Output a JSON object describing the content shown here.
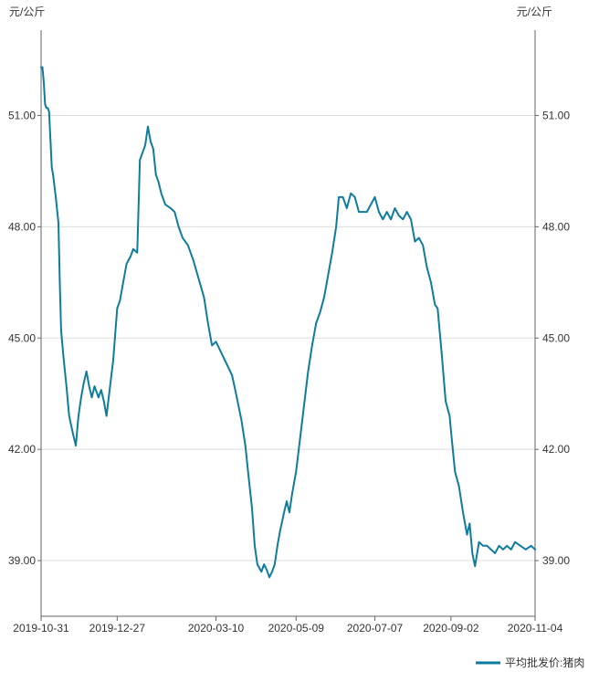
{
  "chart_data": {
    "type": "line",
    "title": "",
    "y_unit_left": "元/公斤",
    "y_unit_right": "元/公斤",
    "ylim": [
      37.5,
      53.3
    ],
    "y_ticks": [
      39.0,
      42.0,
      45.0,
      48.0,
      51.0
    ],
    "y_tick_labels": [
      "39.00",
      "42.00",
      "45.00",
      "48.00",
      "51.00"
    ],
    "x_ticks": [
      "2019-10-31",
      "2019-12-27",
      "2020-03-10",
      "2020-05-09",
      "2020-07-07",
      "2020-09-02",
      "2020-11-04"
    ],
    "grid": true,
    "legend_position": "bottom-right",
    "colors": {
      "line": "#0e7c9e",
      "grid": "#dddddd",
      "axis": "#666666"
    },
    "series": [
      {
        "name": "平均批发价:猪肉",
        "points": [
          [
            "2019-10-31",
            52.3
          ],
          [
            "2019-11-01",
            52.3
          ],
          [
            "2019-11-02",
            51.9
          ],
          [
            "2019-11-03",
            51.3
          ],
          [
            "2019-11-04",
            51.2
          ],
          [
            "2019-11-05",
            51.2
          ],
          [
            "2019-11-06",
            51.1
          ],
          [
            "2019-11-08",
            49.6
          ],
          [
            "2019-11-09",
            49.4
          ],
          [
            "2019-11-11",
            48.8
          ],
          [
            "2019-11-13",
            48.1
          ],
          [
            "2019-11-14",
            46.5
          ],
          [
            "2019-11-15",
            45.2
          ],
          [
            "2019-11-17",
            44.4
          ],
          [
            "2019-11-19",
            43.7
          ],
          [
            "2019-11-21",
            42.9
          ],
          [
            "2019-11-24",
            42.4
          ],
          [
            "2019-11-26",
            42.1
          ],
          [
            "2019-11-28",
            42.9
          ],
          [
            "2019-11-30",
            43.4
          ],
          [
            "2019-12-02",
            43.8
          ],
          [
            "2019-12-04",
            44.1
          ],
          [
            "2019-12-06",
            43.7
          ],
          [
            "2019-12-08",
            43.4
          ],
          [
            "2019-12-10",
            43.7
          ],
          [
            "2019-12-13",
            43.4
          ],
          [
            "2019-12-15",
            43.6
          ],
          [
            "2019-12-17",
            43.3
          ],
          [
            "2019-12-19",
            42.9
          ],
          [
            "2019-12-21",
            43.5
          ],
          [
            "2019-12-24",
            44.4
          ],
          [
            "2019-12-27",
            45.8
          ],
          [
            "2019-12-29",
            46.0
          ],
          [
            "2020-01-01",
            46.6
          ],
          [
            "2020-01-03",
            47.0
          ],
          [
            "2020-01-06",
            47.2
          ],
          [
            "2020-01-08",
            47.4
          ],
          [
            "2020-01-11",
            47.3
          ],
          [
            "2020-01-13",
            49.8
          ],
          [
            "2020-01-15",
            50.0
          ],
          [
            "2020-01-17",
            50.2
          ],
          [
            "2020-01-19",
            50.7
          ],
          [
            "2020-01-21",
            50.3
          ],
          [
            "2020-01-23",
            50.1
          ],
          [
            "2020-01-25",
            49.4
          ],
          [
            "2020-01-27",
            49.2
          ],
          [
            "2020-01-29",
            48.9
          ],
          [
            "2020-02-01",
            48.6
          ],
          [
            "2020-02-05",
            48.5
          ],
          [
            "2020-02-08",
            48.4
          ],
          [
            "2020-02-11",
            48.0
          ],
          [
            "2020-02-14",
            47.7
          ],
          [
            "2020-02-18",
            47.5
          ],
          [
            "2020-02-22",
            47.1
          ],
          [
            "2020-02-26",
            46.6
          ],
          [
            "2020-03-01",
            46.1
          ],
          [
            "2020-03-04",
            45.4
          ],
          [
            "2020-03-07",
            44.8
          ],
          [
            "2020-03-10",
            44.9
          ],
          [
            "2020-03-14",
            44.6
          ],
          [
            "2020-03-18",
            44.3
          ],
          [
            "2020-03-22",
            44.0
          ],
          [
            "2020-03-25",
            43.5
          ],
          [
            "2020-03-29",
            42.8
          ],
          [
            "2020-04-01",
            42.1
          ],
          [
            "2020-04-03",
            41.4
          ],
          [
            "2020-04-06",
            40.4
          ],
          [
            "2020-04-08",
            39.4
          ],
          [
            "2020-04-10",
            38.9
          ],
          [
            "2020-04-13",
            38.7
          ],
          [
            "2020-04-15",
            38.9
          ],
          [
            "2020-04-17",
            38.75
          ],
          [
            "2020-04-19",
            38.55
          ],
          [
            "2020-04-21",
            38.7
          ],
          [
            "2020-04-23",
            38.9
          ],
          [
            "2020-04-25",
            39.4
          ],
          [
            "2020-04-27",
            39.8
          ],
          [
            "2020-04-30",
            40.3
          ],
          [
            "2020-05-02",
            40.6
          ],
          [
            "2020-05-04",
            40.3
          ],
          [
            "2020-05-06",
            40.8
          ],
          [
            "2020-05-09",
            41.4
          ],
          [
            "2020-05-12",
            42.3
          ],
          [
            "2020-05-15",
            43.2
          ],
          [
            "2020-05-18",
            44.1
          ],
          [
            "2020-05-21",
            44.8
          ],
          [
            "2020-05-24",
            45.4
          ],
          [
            "2020-05-27",
            45.7
          ],
          [
            "2020-05-30",
            46.1
          ],
          [
            "2020-06-02",
            46.7
          ],
          [
            "2020-06-05",
            47.3
          ],
          [
            "2020-06-08",
            48.0
          ],
          [
            "2020-06-10",
            48.8
          ],
          [
            "2020-06-13",
            48.8
          ],
          [
            "2020-06-16",
            48.5
          ],
          [
            "2020-06-19",
            48.9
          ],
          [
            "2020-06-22",
            48.8
          ],
          [
            "2020-06-25",
            48.4
          ],
          [
            "2020-06-28",
            48.4
          ],
          [
            "2020-07-01",
            48.4
          ],
          [
            "2020-07-04",
            48.6
          ],
          [
            "2020-07-07",
            48.8
          ],
          [
            "2020-07-10",
            48.4
          ],
          [
            "2020-07-13",
            48.2
          ],
          [
            "2020-07-16",
            48.4
          ],
          [
            "2020-07-19",
            48.2
          ],
          [
            "2020-07-22",
            48.5
          ],
          [
            "2020-07-25",
            48.3
          ],
          [
            "2020-07-28",
            48.2
          ],
          [
            "2020-07-31",
            48.4
          ],
          [
            "2020-08-03",
            48.2
          ],
          [
            "2020-08-06",
            47.6
          ],
          [
            "2020-08-09",
            47.7
          ],
          [
            "2020-08-12",
            47.5
          ],
          [
            "2020-08-15",
            46.9
          ],
          [
            "2020-08-18",
            46.5
          ],
          [
            "2020-08-21",
            45.9
          ],
          [
            "2020-08-23",
            45.8
          ],
          [
            "2020-08-26",
            44.6
          ],
          [
            "2020-08-29",
            43.3
          ],
          [
            "2020-09-01",
            42.9
          ],
          [
            "2020-09-02",
            42.5
          ],
          [
            "2020-09-05",
            41.4
          ],
          [
            "2020-09-08",
            41.0
          ],
          [
            "2020-09-11",
            40.3
          ],
          [
            "2020-09-14",
            39.7
          ],
          [
            "2020-09-16",
            40.0
          ],
          [
            "2020-09-18",
            39.2
          ],
          [
            "2020-09-20",
            38.85
          ],
          [
            "2020-09-23",
            39.5
          ],
          [
            "2020-09-26",
            39.4
          ],
          [
            "2020-09-29",
            39.4
          ],
          [
            "2020-10-02",
            39.3
          ],
          [
            "2020-10-05",
            39.2
          ],
          [
            "2020-10-08",
            39.4
          ],
          [
            "2020-10-11",
            39.3
          ],
          [
            "2020-10-14",
            39.4
          ],
          [
            "2020-10-17",
            39.3
          ],
          [
            "2020-10-20",
            39.5
          ],
          [
            "2020-10-24",
            39.4
          ],
          [
            "2020-10-28",
            39.3
          ],
          [
            "2020-11-01",
            39.4
          ],
          [
            "2020-11-04",
            39.3
          ]
        ]
      }
    ]
  }
}
